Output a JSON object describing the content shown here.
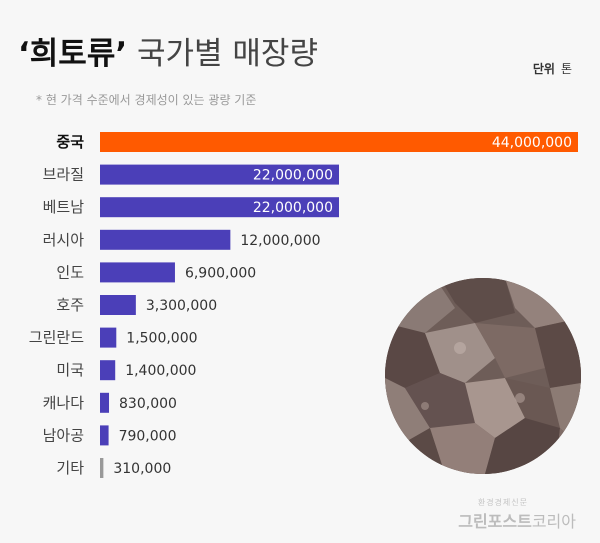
{
  "header": {
    "title_highlight": "‘희토류’",
    "title_rest": "국가별 매장량",
    "unit_label": "단위",
    "unit_value": "톤",
    "note": "* 현 가격 수준에서 경제성이 있는 광량 기준"
  },
  "brand": {
    "small": "환경경제신문",
    "main": "그린포스트",
    "sub": "코리아"
  },
  "colors": {
    "highlight": "#ff5a00",
    "bar": "#4b3fb8",
    "other": "#999999"
  },
  "chart_data": {
    "type": "bar",
    "orientation": "horizontal",
    "categories": [
      "중국",
      "브라질",
      "베트남",
      "러시아",
      "인도",
      "호주",
      "그린란드",
      "미국",
      "캐나다",
      "남아공",
      "기타"
    ],
    "values": [
      44000000,
      22000000,
      22000000,
      12000000,
      6900000,
      3300000,
      1500000,
      1400000,
      830000,
      790000,
      310000
    ],
    "value_labels": [
      "44,000,000",
      "22,000,000",
      "22,000,000",
      "12,000,000",
      "6,900,000",
      "3,300,000",
      "1,500,000",
      "1,400,000",
      "830,000",
      "790,000",
      "310,000"
    ],
    "title": "‘희토류’ 국가별 매장량",
    "unit": "톤",
    "xlim": [
      0,
      44000000
    ],
    "grid": false,
    "legend": "none",
    "highlight_index": 0
  }
}
